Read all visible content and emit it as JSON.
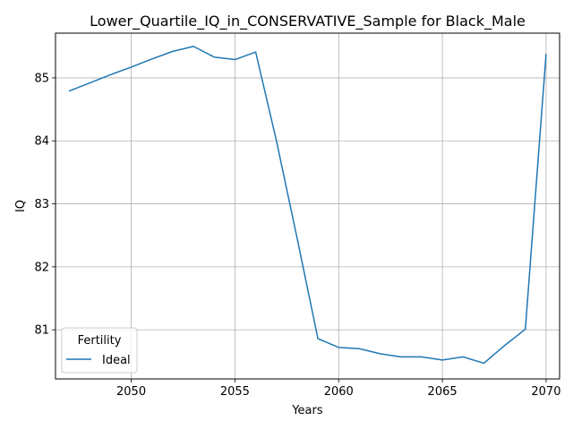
{
  "chart_data": {
    "type": "line",
    "title": "Lower_Quartile_IQ_in_CONSERVATIVE_Sample for Black_Male",
    "xlabel": "Years",
    "ylabel": "IQ",
    "xlim": [
      2046.35,
      2070.65
    ],
    "ylim": [
      80.22,
      85.71
    ],
    "xticks": [
      2050,
      2055,
      2060,
      2065,
      2070
    ],
    "yticks": [
      81,
      82,
      83,
      84,
      85
    ],
    "grid": true,
    "legend": {
      "title": "Fertility",
      "placement": "lower-left"
    },
    "series": [
      {
        "name": "Ideal",
        "color": "#1f77b4",
        "x": [
          2047,
          2048,
          2049,
          2050,
          2051,
          2052,
          2053,
          2054,
          2055,
          2056,
          2057,
          2058,
          2059,
          2060,
          2061,
          2062,
          2063,
          2064,
          2065,
          2066,
          2067,
          2068,
          2069,
          2070
        ],
        "y": [
          84.79,
          84.92,
          85.05,
          85.17,
          85.3,
          85.42,
          85.5,
          85.33,
          85.29,
          85.41,
          84.0,
          82.45,
          80.86,
          80.72,
          80.7,
          80.62,
          80.57,
          80.57,
          80.52,
          80.57,
          80.47,
          80.75,
          81.01,
          85.38
        ]
      }
    ]
  }
}
